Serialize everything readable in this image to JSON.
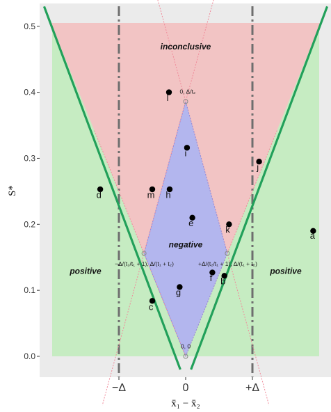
{
  "chart_data": {
    "type": "scatter",
    "title": "",
    "xlabel": "x̄₁ − x̄₂",
    "ylabel": "S*",
    "xlim": [
      -2.05,
      2.05
    ],
    "ylim": [
      -0.02,
      0.525
    ],
    "grid": false,
    "delta": 1,
    "apex": [
      0,
      0.386
    ],
    "side_vertex_y": 0.156,
    "top_y": 0.505,
    "y_ticks": [
      0.0,
      0.1,
      0.2,
      0.3,
      0.4,
      0.5
    ],
    "y_tick_labels": [
      "0.0",
      "0.1",
      "0.2",
      "0.3",
      "0.4",
      "0.5"
    ],
    "x_ticks": [
      {
        "x": -1,
        "label": "−Δ"
      },
      {
        "x": 0,
        "label": "0"
      },
      {
        "x": 1,
        "label": "+Δ"
      }
    ],
    "regions": [
      {
        "name": "inconclusive",
        "label": "inconclusive",
        "color": "#f2c4c4",
        "label_at": [
          0,
          0.465
        ]
      },
      {
        "name": "negative",
        "label": "negative",
        "color": "#b3b6ee",
        "label_at": [
          0,
          0.165
        ]
      },
      {
        "name": "positive-left",
        "label": "positive",
        "color": "#c6ecc2",
        "label_at": [
          -1.5,
          0.125
        ]
      },
      {
        "name": "positive-right",
        "label": "positive",
        "color": "#c6ecc2",
        "label_at": [
          1.5,
          0.125
        ]
      }
    ],
    "points": [
      {
        "label": "a",
        "x": 1.91,
        "y": 0.19,
        "lx": 1.9,
        "ly": 0.178
      },
      {
        "label": "b",
        "x": 0.58,
        "y": 0.122,
        "lx": 0.56,
        "ly": 0.109
      },
      {
        "label": "c",
        "x": -0.5,
        "y": 0.084,
        "lx": -0.52,
        "ly": 0.07
      },
      {
        "label": "d",
        "x": -1.28,
        "y": 0.253,
        "lx": -1.3,
        "ly": 0.24
      },
      {
        "label": "e",
        "x": 0.1,
        "y": 0.21,
        "lx": 0.08,
        "ly": 0.197
      },
      {
        "label": "f",
        "x": 0.4,
        "y": 0.127,
        "lx": 0.38,
        "ly": 0.114
      },
      {
        "label": "g",
        "x": -0.09,
        "y": 0.105,
        "lx": -0.11,
        "ly": 0.092
      },
      {
        "label": "h",
        "x": -0.24,
        "y": 0.253,
        "lx": -0.26,
        "ly": 0.24
      },
      {
        "label": "i",
        "x": 0.02,
        "y": 0.316,
        "lx": 0.0,
        "ly": 0.303
      },
      {
        "label": "j",
        "x": 1.1,
        "y": 0.295,
        "lx": 1.08,
        "ly": 0.282
      },
      {
        "label": "k",
        "x": 0.65,
        "y": 0.2,
        "lx": 0.63,
        "ly": 0.187
      },
      {
        "label": "l",
        "x": -0.25,
        "y": 0.4,
        "lx": -0.27,
        "ly": 0.387
      },
      {
        "label": "m",
        "x": -0.5,
        "y": 0.253,
        "lx": -0.52,
        "ly": 0.24
      }
    ],
    "annotations": [
      {
        "text": "0, Δ/t₂",
        "x": 0.03,
        "y": 0.398,
        "anchor": "middle"
      },
      {
        "text": "−Δ/(t₂/t₁ + 1), Δ/(t₁ + t₂)",
        "x": -0.62,
        "y": 0.137,
        "anchor": "middle"
      },
      {
        "text": "+Δ/(t₂/t₁ + 1), Δ/(t₁ + t₂)",
        "x": 0.63,
        "y": 0.137,
        "anchor": "middle"
      },
      {
        "text": "0, 0",
        "x": 0,
        "y": 0.012,
        "anchor": "middle"
      }
    ]
  }
}
